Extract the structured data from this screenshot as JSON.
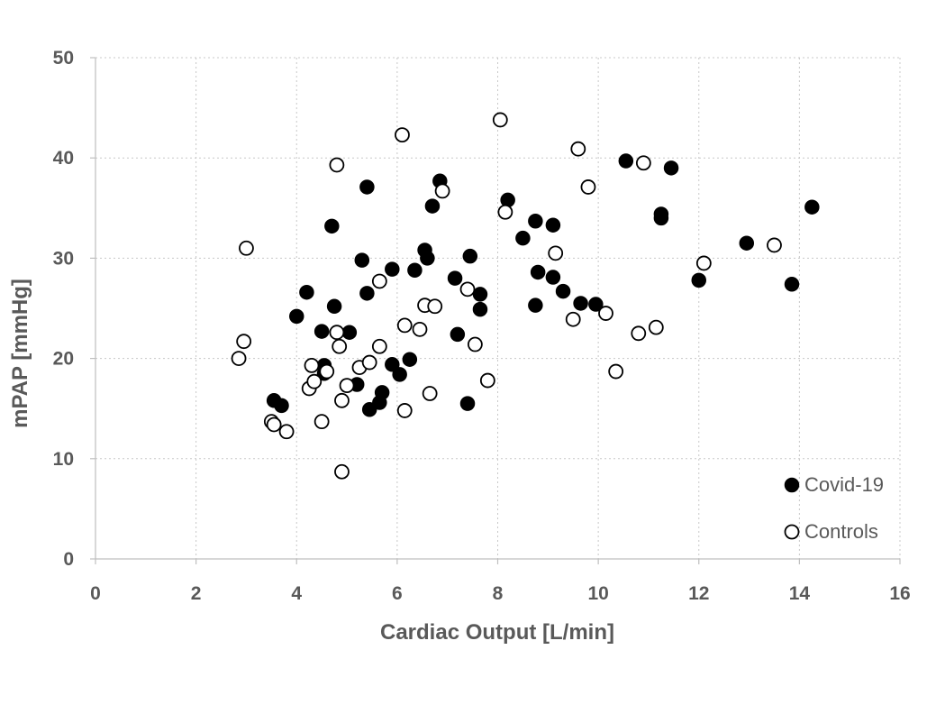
{
  "chart_data": {
    "type": "scatter",
    "xlabel": "Cardiac Output [L/min]",
    "ylabel": "mPAP [mmHg]",
    "xlim": [
      0,
      16
    ],
    "ylim": [
      0,
      50
    ],
    "xticks": [
      "0",
      "2",
      "4",
      "6",
      "8",
      "10",
      "12",
      "14",
      "16"
    ],
    "yticks": [
      "0",
      "10",
      "20",
      "30",
      "40",
      "50"
    ],
    "grid": true,
    "legend_position": "bottom-right",
    "series": [
      {
        "name": "Covid-19",
        "marker": "filled-circle",
        "color": "#000000",
        "points": [
          [
            3.55,
            15.8
          ],
          [
            3.7,
            15.3
          ],
          [
            4.0,
            24.2
          ],
          [
            4.2,
            26.6
          ],
          [
            4.5,
            22.7
          ],
          [
            4.55,
            19.3
          ],
          [
            4.55,
            18.5
          ],
          [
            4.7,
            33.2
          ],
          [
            4.75,
            25.2
          ],
          [
            5.05,
            22.6
          ],
          [
            5.2,
            17.4
          ],
          [
            5.3,
            29.8
          ],
          [
            5.4,
            37.1
          ],
          [
            5.4,
            26.5
          ],
          [
            5.45,
            14.9
          ],
          [
            5.65,
            15.6
          ],
          [
            5.7,
            16.6
          ],
          [
            5.9,
            19.4
          ],
          [
            5.9,
            28.9
          ],
          [
            6.05,
            18.4
          ],
          [
            6.25,
            19.9
          ],
          [
            6.35,
            28.8
          ],
          [
            6.55,
            30.8
          ],
          [
            6.6,
            30.0
          ],
          [
            6.7,
            35.2
          ],
          [
            6.85,
            37.7
          ],
          [
            7.15,
            28.0
          ],
          [
            7.2,
            22.4
          ],
          [
            7.4,
            15.5
          ],
          [
            7.45,
            30.2
          ],
          [
            7.65,
            26.4
          ],
          [
            7.65,
            24.9
          ],
          [
            8.2,
            35.8
          ],
          [
            8.5,
            32.0
          ],
          [
            8.75,
            33.7
          ],
          [
            8.8,
            28.6
          ],
          [
            8.75,
            25.3
          ],
          [
            9.1,
            33.3
          ],
          [
            9.1,
            28.1
          ],
          [
            9.3,
            26.7
          ],
          [
            9.65,
            25.5
          ],
          [
            9.95,
            25.4
          ],
          [
            10.55,
            39.7
          ],
          [
            11.25,
            34.4
          ],
          [
            11.25,
            34.0
          ],
          [
            11.45,
            39.0
          ],
          [
            12.0,
            27.8
          ],
          [
            12.95,
            31.5
          ],
          [
            13.85,
            27.4
          ],
          [
            14.25,
            35.1
          ]
        ]
      },
      {
        "name": "Controls",
        "marker": "open-circle",
        "color": "#000000",
        "points": [
          [
            2.85,
            20.0
          ],
          [
            2.95,
            21.7
          ],
          [
            3.0,
            31.0
          ],
          [
            3.5,
            13.7
          ],
          [
            3.55,
            13.4
          ],
          [
            3.8,
            12.7
          ],
          [
            4.25,
            17.0
          ],
          [
            4.3,
            19.3
          ],
          [
            4.35,
            17.7
          ],
          [
            4.5,
            13.7
          ],
          [
            4.6,
            18.7
          ],
          [
            4.8,
            39.3
          ],
          [
            4.8,
            22.6
          ],
          [
            4.85,
            21.2
          ],
          [
            4.9,
            15.8
          ],
          [
            4.9,
            8.7
          ],
          [
            5.0,
            17.3
          ],
          [
            5.25,
            19.1
          ],
          [
            5.45,
            19.6
          ],
          [
            5.65,
            27.7
          ],
          [
            5.65,
            21.2
          ],
          [
            6.1,
            42.3
          ],
          [
            6.15,
            23.3
          ],
          [
            6.15,
            14.8
          ],
          [
            6.45,
            22.9
          ],
          [
            6.55,
            25.3
          ],
          [
            6.65,
            16.5
          ],
          [
            6.75,
            25.2
          ],
          [
            6.9,
            36.7
          ],
          [
            7.4,
            26.9
          ],
          [
            7.55,
            21.4
          ],
          [
            7.8,
            17.8
          ],
          [
            8.05,
            43.8
          ],
          [
            8.15,
            34.6
          ],
          [
            9.15,
            30.5
          ],
          [
            9.5,
            23.9
          ],
          [
            9.6,
            40.9
          ],
          [
            9.8,
            37.1
          ],
          [
            10.15,
            24.5
          ],
          [
            10.35,
            18.7
          ],
          [
            10.8,
            22.5
          ],
          [
            10.9,
            39.5
          ],
          [
            11.15,
            23.1
          ],
          [
            12.1,
            29.5
          ],
          [
            13.5,
            31.3
          ]
        ]
      }
    ]
  }
}
